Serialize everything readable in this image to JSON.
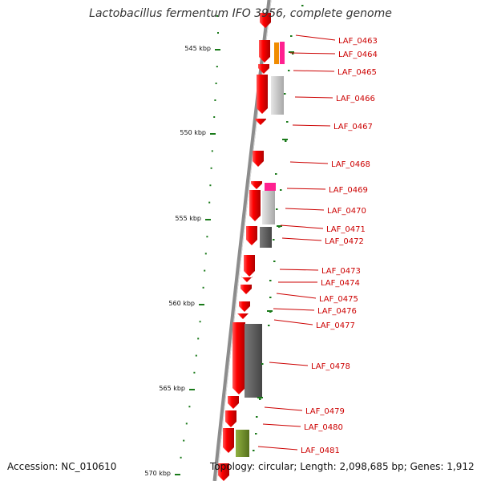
{
  "title": "Lactobacillus fermentum IFO 3956, complete genome",
  "accession": "Accession: NC_010610",
  "topology": "Topology: circular; Length: 2,098,685 bp; Genes: 1,912",
  "colors": {
    "cds": "#ee0000",
    "gene_label": "#cc0000",
    "backbone": "#8c8c8c",
    "tick": "#1a7a1a",
    "light_gray": "#c0c0c0",
    "dark_gray": "#5a5a5a",
    "orange": "#f08c00",
    "magenta": "#ff2090",
    "olive": "#6b8e23"
  },
  "kbp_ticks": [
    {
      "label": "545 kbp"
    },
    {
      "label": "550 kbp"
    },
    {
      "label": "555 kbp"
    },
    {
      "label": "560 kbp"
    },
    {
      "label": "565 kbp"
    },
    {
      "label": "570 kbp"
    }
  ],
  "genes": [
    {
      "label": "LAF_0463"
    },
    {
      "label": "LAF_0464"
    },
    {
      "label": "LAF_0465"
    },
    {
      "label": "LAF_0466"
    },
    {
      "label": "LAF_0467"
    },
    {
      "label": "LAF_0468"
    },
    {
      "label": "LAF_0469"
    },
    {
      "label": "LAF_0470"
    },
    {
      "label": "LAF_0471"
    },
    {
      "label": "LAF_0472"
    },
    {
      "label": "LAF_0473"
    },
    {
      "label": "LAF_0474"
    },
    {
      "label": "LAF_0475"
    },
    {
      "label": "LAF_0476"
    },
    {
      "label": "LAF_0477"
    },
    {
      "label": "LAF_0478"
    },
    {
      "label": "LAF_0479"
    },
    {
      "label": "LAF_0480"
    },
    {
      "label": "LAF_0481"
    }
  ]
}
